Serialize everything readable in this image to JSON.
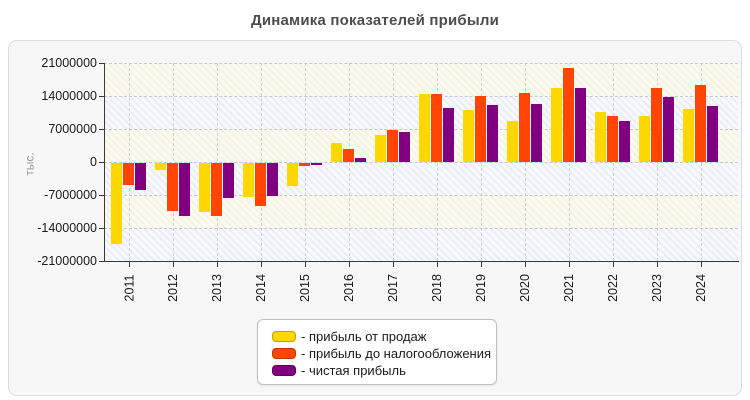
{
  "page": {
    "title": "Динамика показателей прибыли"
  },
  "chart_data": {
    "type": "bar",
    "title": "Динамика показателей прибыли",
    "xlabel": "",
    "ylabel": "тыс.",
    "ylim": [
      -21000000,
      21000000
    ],
    "ytick_step": 7000000,
    "grid": true,
    "legend_position": "bottom-center",
    "categories": [
      "2011",
      "2012",
      "2013",
      "2014",
      "2015",
      "2016",
      "2017",
      "2018",
      "2019",
      "2020",
      "2021",
      "2022",
      "2023",
      "2024"
    ],
    "series": [
      {
        "name": "прибыль от продаж",
        "color": "#FFD700",
        "values": [
          -17100000,
          -1400000,
          -10400000,
          -7300000,
          -4900000,
          4000000,
          5700000,
          14400000,
          11100000,
          8800000,
          15600000,
          10500000,
          9800000,
          11200000
        ]
      },
      {
        "name": "прибыль до налогообложения",
        "color": "#FF4500",
        "values": [
          -4600000,
          -10100000,
          -11200000,
          -9100000,
          -700000,
          2800000,
          6700000,
          14500000,
          14100000,
          14700000,
          20000000,
          9800000,
          15600000,
          16300000
        ]
      },
      {
        "name": "чистая прибыль",
        "color": "#800080",
        "values": [
          -5700000,
          -11200000,
          -7400000,
          -6900000,
          -400000,
          900000,
          6300000,
          11400000,
          12100000,
          12200000,
          15800000,
          8600000,
          13700000,
          11800000
        ]
      }
    ]
  },
  "legend": {
    "items": [
      {
        "label": "- прибыль от продаж",
        "color": "#FFD700",
        "border": "#bfa100"
      },
      {
        "label": "- прибыль до налогообложения",
        "color": "#FF4500",
        "border": "#c23400"
      },
      {
        "label": "- чистая прибыль",
        "color": "#800080",
        "border": "#5c005c"
      }
    ]
  },
  "colors": {
    "panel_bg": "#f7f7f7",
    "band_cream": "#f5f4e3",
    "band_blue": "#eceef6",
    "grid": "#c9c9c9",
    "axis": "#3a3a3a",
    "title_text": "#4d4d4d",
    "unit_text": "#9a9a9a"
  }
}
